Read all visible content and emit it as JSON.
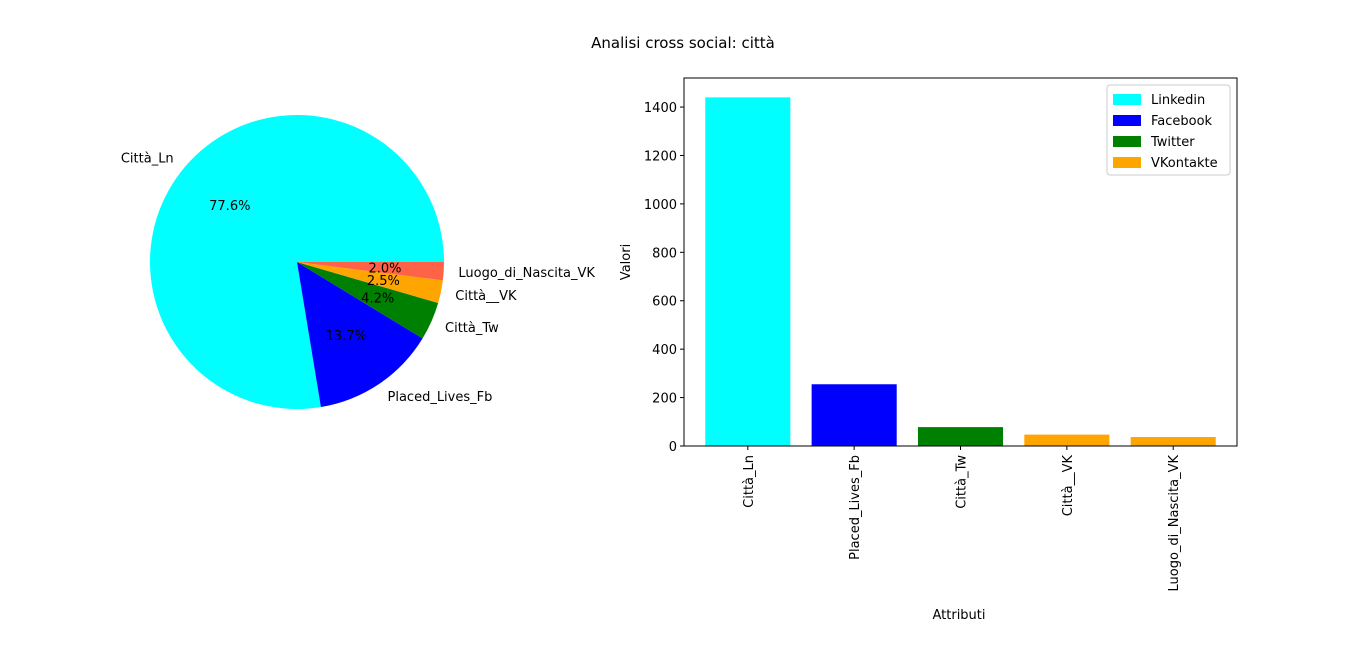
{
  "figure": {
    "title": "Analisi cross social: città"
  },
  "chart_data": [
    {
      "type": "pie",
      "labels": [
        "Città_Ln",
        "Placed_Lives_Fb",
        "Città_Tw",
        "Città__VK",
        "Luogo_di_Nascita_VK"
      ],
      "values": [
        77.6,
        13.7,
        4.2,
        2.5,
        2.0
      ],
      "pct_labels": [
        "77.6%",
        "13.7%",
        "4.2%",
        "2.5%",
        "2.0%"
      ],
      "colors": [
        "#00ffff",
        "#0000ff",
        "#008000",
        "#ffa500",
        "#ff6347"
      ],
      "start_angle": 0,
      "direction": "counterclockwise"
    },
    {
      "type": "bar",
      "categories": [
        "Città_Ln",
        "Placed_Lives_Fb",
        "Città_Tw",
        "Città__VK",
        "Luogo_di_Nascita_VK"
      ],
      "values": [
        1440,
        255,
        78,
        47,
        37
      ],
      "colors": [
        "#00ffff",
        "#0000ff",
        "#008000",
        "#ffa500",
        "#ffa500"
      ],
      "xlabel": "Attributi",
      "ylabel": "Valori",
      "ylim": [
        0,
        1520
      ],
      "yticks": [
        0,
        200,
        400,
        600,
        800,
        1000,
        1200,
        1400
      ],
      "grid": false,
      "legend": {
        "position": "top-right",
        "entries": [
          {
            "name": "Linkedin",
            "color": "#00ffff"
          },
          {
            "name": "Facebook",
            "color": "#0000ff"
          },
          {
            "name": "Twitter",
            "color": "#008000"
          },
          {
            "name": "VKontakte",
            "color": "#ffa500"
          }
        ]
      }
    }
  ]
}
